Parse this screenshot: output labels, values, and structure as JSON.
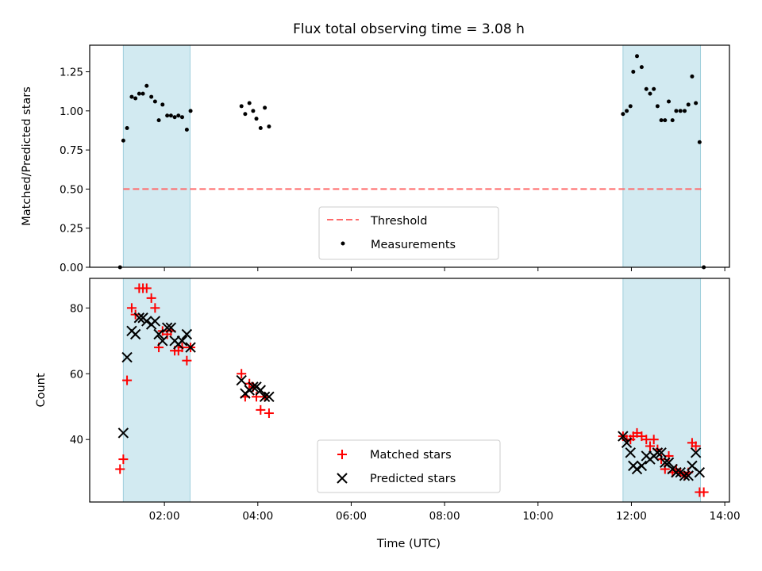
{
  "chart_data": [
    {
      "type": "scatter",
      "title": "Flux total observing time = 3.08 h",
      "xlabel": "",
      "ylabel": "Matched/Predicted stars",
      "xlim": [
        0.4,
        14.1
      ],
      "ylim": [
        0,
        1.42
      ],
      "yticks": [
        0.0,
        0.25,
        0.5,
        0.75,
        1.0,
        1.25
      ],
      "ytick_labels": [
        "0.00",
        "0.25",
        "0.50",
        "0.75",
        "1.00",
        "1.25"
      ],
      "xticks": [
        2,
        4,
        6,
        8,
        10,
        12,
        14
      ],
      "shaded_spans": [
        [
          1.12,
          2.55
        ],
        [
          11.82,
          13.48
        ]
      ],
      "shade_color": "#add8e6",
      "threshold": {
        "name": "Threshold",
        "value": 0.5,
        "x_range": [
          1.12,
          13.55
        ],
        "color": "#ff6b6b"
      },
      "series": [
        {
          "name": "Measurements",
          "color": "#000000",
          "marker": "dot",
          "points": [
            [
              1.05,
              0.0
            ],
            [
              1.12,
              0.81
            ],
            [
              1.2,
              0.89
            ],
            [
              1.3,
              1.09
            ],
            [
              1.38,
              1.08
            ],
            [
              1.46,
              1.11
            ],
            [
              1.54,
              1.11
            ],
            [
              1.62,
              1.16
            ],
            [
              1.72,
              1.09
            ],
            [
              1.8,
              1.06
            ],
            [
              1.88,
              0.94
            ],
            [
              1.96,
              1.04
            ],
            [
              2.06,
              0.97
            ],
            [
              2.14,
              0.97
            ],
            [
              2.22,
              0.96
            ],
            [
              2.3,
              0.97
            ],
            [
              2.38,
              0.96
            ],
            [
              2.48,
              0.88
            ],
            [
              2.56,
              1.0
            ],
            [
              3.65,
              1.03
            ],
            [
              3.73,
              0.98
            ],
            [
              3.82,
              1.05
            ],
            [
              3.9,
              1.0
            ],
            [
              3.97,
              0.95
            ],
            [
              4.06,
              0.89
            ],
            [
              4.15,
              1.02
            ],
            [
              4.24,
              0.9
            ],
            [
              11.82,
              0.98
            ],
            [
              11.9,
              1.0
            ],
            [
              11.98,
              1.03
            ],
            [
              12.04,
              1.25
            ],
            [
              12.12,
              1.35
            ],
            [
              12.22,
              1.28
            ],
            [
              12.32,
              1.14
            ],
            [
              12.4,
              1.11
            ],
            [
              12.48,
              1.14
            ],
            [
              12.56,
              1.03
            ],
            [
              12.64,
              0.94
            ],
            [
              12.72,
              0.94
            ],
            [
              12.8,
              1.06
            ],
            [
              12.88,
              0.94
            ],
            [
              12.96,
              1.0
            ],
            [
              13.05,
              1.0
            ],
            [
              13.14,
              1.0
            ],
            [
              13.22,
              1.04
            ],
            [
              13.3,
              1.22
            ],
            [
              13.38,
              1.05
            ],
            [
              13.46,
              0.8
            ],
            [
              13.55,
              0.0
            ]
          ]
        }
      ],
      "legend": {
        "placement": "lower-center",
        "entries": [
          "Threshold",
          "Measurements"
        ]
      }
    },
    {
      "type": "scatter",
      "title": "",
      "xlabel": "Time (UTC)",
      "ylabel": "Count",
      "xlim": [
        0.4,
        14.1
      ],
      "ylim": [
        21,
        89
      ],
      "yticks": [
        40,
        60,
        80
      ],
      "ytick_labels": [
        "40",
        "60",
        "80"
      ],
      "xticks": [
        2,
        4,
        6,
        8,
        10,
        12,
        14
      ],
      "xtick_labels": [
        "02:00",
        "04:00",
        "06:00",
        "08:00",
        "10:00",
        "12:00",
        "14:00"
      ],
      "shaded_spans": [
        [
          1.12,
          2.55
        ],
        [
          11.82,
          13.48
        ]
      ],
      "shade_color": "#add8e6",
      "series": [
        {
          "name": "Matched stars",
          "color": "#ff0000",
          "marker": "plus",
          "points": [
            [
              1.05,
              31
            ],
            [
              1.12,
              34
            ],
            [
              1.2,
              58
            ],
            [
              1.3,
              80
            ],
            [
              1.38,
              78
            ],
            [
              1.46,
              86
            ],
            [
              1.54,
              86
            ],
            [
              1.62,
              86
            ],
            [
              1.72,
              83
            ],
            [
              1.8,
              80
            ],
            [
              1.88,
              68
            ],
            [
              1.96,
              73
            ],
            [
              2.06,
              72
            ],
            [
              2.14,
              73
            ],
            [
              2.22,
              67
            ],
            [
              2.3,
              67
            ],
            [
              2.38,
              68
            ],
            [
              2.48,
              64
            ],
            [
              2.56,
              68
            ],
            [
              3.65,
              60
            ],
            [
              3.73,
              53
            ],
            [
              3.82,
              57
            ],
            [
              3.9,
              56
            ],
            [
              3.97,
              53
            ],
            [
              4.06,
              49
            ],
            [
              4.15,
              53
            ],
            [
              4.24,
              48
            ],
            [
              11.82,
              41
            ],
            [
              11.9,
              40
            ],
            [
              11.98,
              40
            ],
            [
              12.04,
              41
            ],
            [
              12.12,
              42
            ],
            [
              12.22,
              41
            ],
            [
              12.32,
              40
            ],
            [
              12.4,
              38
            ],
            [
              12.48,
              40
            ],
            [
              12.56,
              37
            ],
            [
              12.64,
              34
            ],
            [
              12.72,
              31
            ],
            [
              12.8,
              35
            ],
            [
              12.88,
              30
            ],
            [
              12.96,
              31
            ],
            [
              13.05,
              30
            ],
            [
              13.14,
              29
            ],
            [
              13.22,
              30
            ],
            [
              13.3,
              39
            ],
            [
              13.38,
              38
            ],
            [
              13.46,
              24
            ],
            [
              13.55,
              24
            ]
          ]
        },
        {
          "name": "Predicted stars",
          "color": "#000000",
          "marker": "x",
          "points": [
            [
              1.12,
              42
            ],
            [
              1.2,
              65
            ],
            [
              1.3,
              73
            ],
            [
              1.38,
              72
            ],
            [
              1.46,
              77
            ],
            [
              1.54,
              77
            ],
            [
              1.62,
              76
            ],
            [
              1.72,
              75
            ],
            [
              1.8,
              76
            ],
            [
              1.88,
              72
            ],
            [
              1.96,
              70
            ],
            [
              2.06,
              74
            ],
            [
              2.14,
              74
            ],
            [
              2.22,
              70
            ],
            [
              2.3,
              69
            ],
            [
              2.38,
              70
            ],
            [
              2.48,
              72
            ],
            [
              2.56,
              68
            ],
            [
              3.65,
              58
            ],
            [
              3.73,
              54
            ],
            [
              3.82,
              55
            ],
            [
              3.9,
              56
            ],
            [
              3.97,
              56
            ],
            [
              4.06,
              55
            ],
            [
              4.15,
              53
            ],
            [
              4.24,
              53
            ],
            [
              11.82,
              41
            ],
            [
              11.9,
              39
            ],
            [
              11.98,
              36
            ],
            [
              12.04,
              32
            ],
            [
              12.12,
              31
            ],
            [
              12.22,
              32
            ],
            [
              12.32,
              35
            ],
            [
              12.4,
              34
            ],
            [
              12.48,
              35
            ],
            [
              12.56,
              36
            ],
            [
              12.64,
              36
            ],
            [
              12.72,
              33
            ],
            [
              12.8,
              33
            ],
            [
              12.88,
              31
            ],
            [
              12.96,
              30
            ],
            [
              13.05,
              30
            ],
            [
              13.14,
              29
            ],
            [
              13.22,
              29
            ],
            [
              13.3,
              32
            ],
            [
              13.38,
              36
            ],
            [
              13.46,
              30
            ]
          ]
        }
      ],
      "legend": {
        "placement": "lower-center",
        "entries": [
          "Matched stars",
          "Predicted stars"
        ]
      }
    }
  ]
}
